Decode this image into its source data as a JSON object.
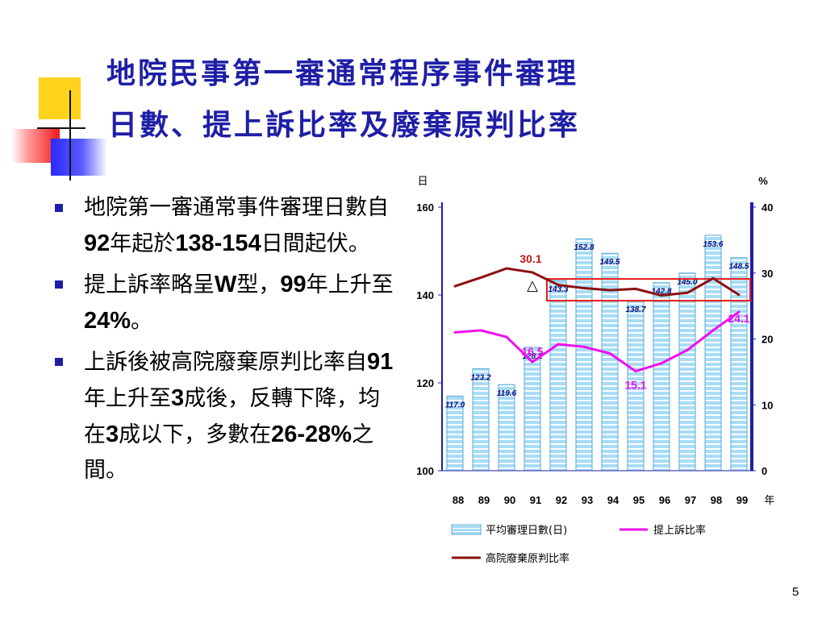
{
  "slide": {
    "title_line1": "地院民事第一審通常程序事件審理",
    "title_line2": "日數、提上訴比率及廢棄原判比率",
    "page_number": "5"
  },
  "bullets": [
    {
      "segments": [
        "地院第一審通常事件審理日數自",
        "92",
        "年起於",
        "138-154",
        "日間起伏。"
      ]
    },
    {
      "segments": [
        "提上訴率略呈",
        "W",
        "型，",
        "99",
        "年上升至",
        "24%",
        "。"
      ]
    },
    {
      "segments": [
        "上訴後被高院廢棄原判比率自",
        "91",
        "年上升至",
        "3",
        "成後，反轉下降，均在",
        "3",
        "成以下，多數在",
        "26-28%",
        "之間。"
      ]
    }
  ],
  "colors": {
    "title": "#1e1ea6",
    "bar_fill": "#a8dcf6",
    "bar_stripe": "#ffffff",
    "bar_border": "#5aaad8",
    "appeal_line": "#ee10ee",
    "reversal_line": "#8b1010",
    "highlight_box": "#e81818",
    "axis": "#1e1ea6"
  },
  "chart_data": {
    "type": "bar",
    "x": [
      "88",
      "89",
      "90",
      "91",
      "92",
      "93",
      "94",
      "95",
      "96",
      "97",
      "98",
      "99"
    ],
    "x_unit": "年",
    "left_axis": {
      "unit": "日",
      "min": 100,
      "max": 160,
      "ticks": [
        100,
        120,
        140,
        160
      ]
    },
    "right_axis": {
      "unit": "%",
      "min": 0,
      "max": 40,
      "ticks": [
        0,
        10,
        20,
        30,
        40
      ]
    },
    "series": [
      {
        "name": "平均審理日數(日)",
        "kind": "bar",
        "axis": "left",
        "values": [
          117.0,
          123.2,
          119.6,
          128.1,
          143.3,
          152.8,
          149.5,
          138.7,
          142.8,
          145.0,
          153.6,
          148.5
        ],
        "labels": [
          "117.0",
          "123.2",
          "119.6",
          "128.1",
          "143.3",
          "152.8",
          "149.5",
          "138.7",
          "142.8",
          "145.0",
          "153.6",
          "148.5"
        ]
      },
      {
        "name": "提上訴比率",
        "kind": "line",
        "axis": "right",
        "values": [
          21.0,
          21.3,
          20.3,
          16.5,
          19.2,
          18.8,
          17.8,
          15.1,
          16.3,
          18.3,
          21.3,
          24.1
        ],
        "labels": {
          "91": "16.5",
          "95": "15.1",
          "99": "24.1"
        }
      },
      {
        "name": "高院廢棄原判比率",
        "kind": "line",
        "axis": "right",
        "values": [
          28.0,
          29.3,
          30.7,
          30.1,
          28.2,
          27.7,
          27.4,
          27.6,
          26.6,
          27.0,
          29.2,
          26.7
        ],
        "labels": {
          "91": "30.1"
        }
      }
    ],
    "marker": {
      "year": "91",
      "series": "高院廢棄原判比率",
      "symbol": "△"
    },
    "highlight_box": {
      "from_year": "92",
      "to_year": "99",
      "right_axis_range": [
        25.8,
        29.1
      ]
    },
    "legend": {
      "position": "bottom"
    },
    "grid": false
  }
}
